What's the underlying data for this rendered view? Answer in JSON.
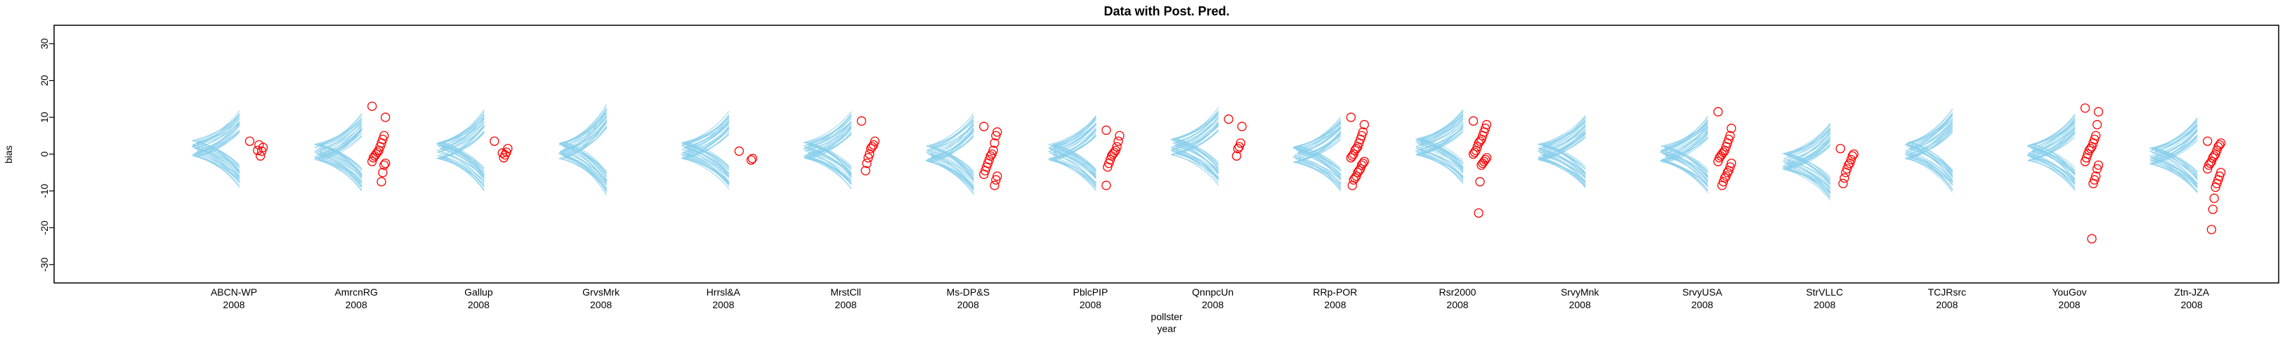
{
  "chart_data": {
    "type": "scatter",
    "title": "Data with Post. Pred.",
    "xlabel_line1": "pollster",
    "xlabel_line2": "year",
    "ylabel": "bias",
    "ylim": [
      -35,
      35
    ],
    "yticks": [
      -30,
      -20,
      -10,
      0,
      10,
      20,
      30
    ],
    "grid": false,
    "legend": "none",
    "colors": {
      "curves": "#87ceeb",
      "points": "#ff0000",
      "axis": "#000000"
    },
    "groups": [
      {
        "pollster": "ABCN-WP",
        "year": "2008",
        "center": 1.5,
        "spread": 9,
        "points": [
          3.5,
          1.8,
          0.8,
          -0.5,
          2.5,
          1.0
        ]
      },
      {
        "pollster": "AmrcnRG",
        "year": "2008",
        "center": 0.5,
        "spread": 9,
        "points": [
          13,
          10,
          5,
          4,
          3,
          2,
          1,
          0.5,
          0,
          -0.5,
          -1,
          -2,
          -2.5,
          -3,
          -5,
          -7.5
        ]
      },
      {
        "pollster": "Gallup",
        "year": "2008",
        "center": 1,
        "spread": 9.5,
        "points": [
          3.5,
          1.5,
          0.5,
          -0.2,
          -1.0,
          0.3
        ]
      },
      {
        "pollster": "GrvsMrk",
        "year": "2008",
        "center": 1,
        "spread": 11,
        "points": []
      },
      {
        "pollster": "Hrrsl&A",
        "year": "2008",
        "center": 1,
        "spread": 9,
        "points": [
          0.8,
          -1.2,
          -1.6
        ]
      },
      {
        "pollster": "MrstCll",
        "year": "2008",
        "center": 1,
        "spread": 9,
        "points": [
          9,
          3.5,
          2.5,
          2,
          1.5,
          0,
          -1,
          -2.5,
          -4.5
        ]
      },
      {
        "pollster": "Ms-DP&S",
        "year": "2008",
        "center": 0,
        "spread": 9.5,
        "points": [
          7.5,
          6,
          5,
          3,
          1,
          0,
          -0.5,
          -1.5,
          -2.5,
          -3.5,
          -4.5,
          -5.5,
          -6,
          -7,
          -8.5
        ]
      },
      {
        "pollster": "PblcPIP",
        "year": "2008",
        "center": 0.5,
        "spread": 9,
        "points": [
          6.5,
          5,
          3.5,
          2,
          1,
          0.5,
          0,
          -0.5,
          -1.5,
          -2.5,
          -3.5,
          -8.5
        ]
      },
      {
        "pollster": "QnnpcUn",
        "year": "2008",
        "center": 2,
        "spread": 9,
        "points": [
          9.5,
          7.5,
          3,
          2,
          1.5,
          -0.5
        ]
      },
      {
        "pollster": "RRp-POR",
        "year": "2008",
        "center": 0,
        "spread": 8.5,
        "points": [
          10,
          8,
          6,
          5,
          4,
          3,
          2,
          1.5,
          1,
          0,
          -0.5,
          -1,
          -2,
          -2.5,
          -3,
          -4,
          -4.5,
          -5,
          -6,
          -6.5,
          -7,
          -8.5
        ]
      },
      {
        "pollster": "Rsr2000",
        "year": "2008",
        "center": 2,
        "spread": 8.5,
        "points": [
          9,
          8,
          7,
          6,
          5,
          4,
          3.5,
          3,
          2,
          1,
          0.5,
          0,
          -1,
          -1.5,
          -2,
          -2.5,
          -3,
          -7.5,
          -16
        ]
      },
      {
        "pollster": "SrvyMnk",
        "year": "2008",
        "center": 0.5,
        "spread": 8.5,
        "points": []
      },
      {
        "pollster": "SrvyUSA",
        "year": "2008",
        "center": 0,
        "spread": 9,
        "points": [
          11.5,
          7,
          5,
          4,
          3,
          2,
          1,
          0.5,
          0,
          -0.5,
          -1,
          -2,
          -2.5,
          -3.5,
          -4.5,
          -5,
          -6,
          -6.5,
          -7.5,
          -8.5
        ]
      },
      {
        "pollster": "StrVLLC",
        "year": "2008",
        "center": -2,
        "spread": 9,
        "points": [
          1.5,
          0,
          -0.5,
          -1.5,
          -2.5,
          -3,
          -4,
          -5,
          -6.5,
          -8
        ]
      },
      {
        "pollster": "TCJRsrc",
        "year": "2008",
        "center": 1,
        "spread": 10,
        "points": []
      },
      {
        "pollster": "YouGov",
        "year": "2008",
        "center": 0.5,
        "spread": 9,
        "points": [
          12.5,
          11.5,
          8,
          5,
          4,
          3,
          2,
          1.5,
          1,
          0,
          -1,
          -2,
          -3,
          -4,
          -6,
          -7,
          -8,
          -23
        ]
      },
      {
        "pollster": "Ztn-JZA",
        "year": "2008",
        "center": -0.5,
        "spread": 9,
        "points": [
          3.5,
          3,
          2.5,
          2,
          1,
          0,
          -0.5,
          -1,
          -2,
          -2.5,
          -3,
          -4,
          -5,
          -6,
          -7,
          -8,
          -9,
          -12,
          -15,
          -20.5
        ]
      }
    ]
  }
}
